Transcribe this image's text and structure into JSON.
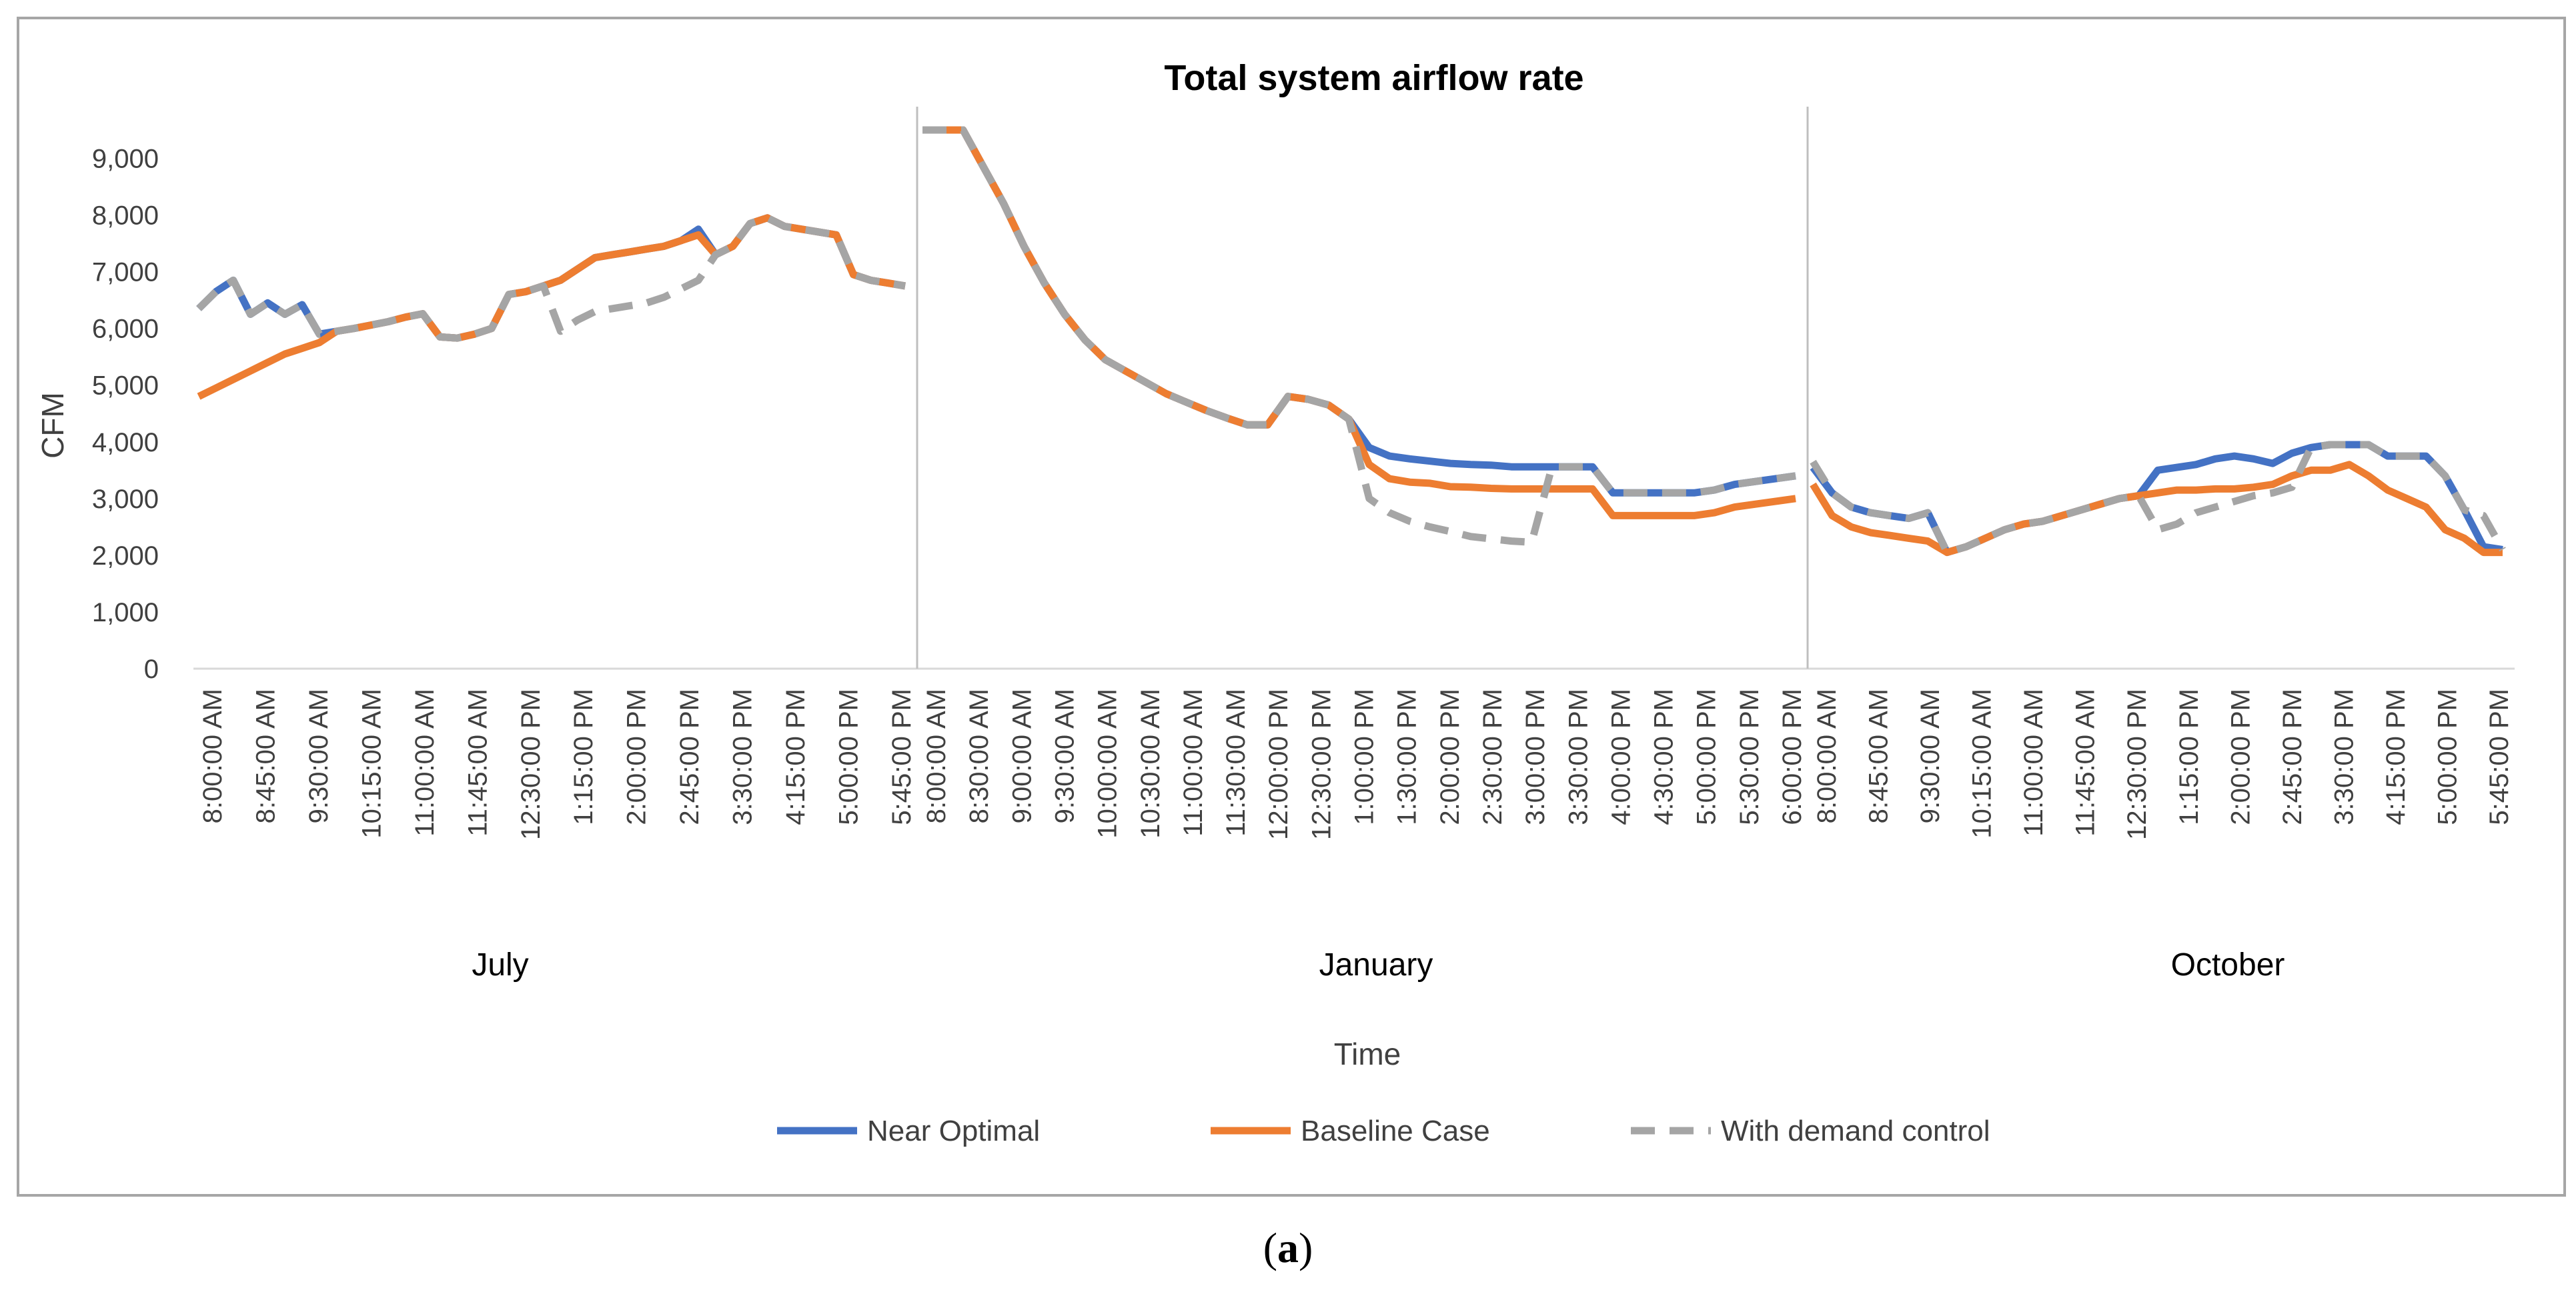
{
  "chart_data": {
    "type": "line",
    "title": "Total system airflow rate",
    "xlabel": "Time",
    "ylabel": "CFM",
    "ylim": [
      0,
      9500
    ],
    "yticks": [
      0,
      1000,
      2000,
      3000,
      4000,
      5000,
      6000,
      7000,
      8000,
      9000
    ],
    "ytick_labels": [
      "0",
      "1,000",
      "2,000",
      "3,000",
      "4,000",
      "5,000",
      "6,000",
      "7,000",
      "8,000",
      "9,000"
    ],
    "colors": {
      "Near Optimal": "#4472c4",
      "Baseline Case": "#ed7d31",
      "With demand control": "#a5a5a5"
    },
    "panels": [
      {
        "name": "July",
        "tick_labels": [
          "8:00:00 AM",
          "8:45:00 AM",
          "9:30:00 AM",
          "10:15:00 AM",
          "11:00:00 AM",
          "11:45:00 AM",
          "12:30:00 PM",
          "1:15:00 PM",
          "2:00:00 PM",
          "2:45:00 PM",
          "3:30:00 PM",
          "4:15:00 PM",
          "5:00:00 PM",
          "5:45:00 PM"
        ],
        "series": [
          {
            "name": "Near Optimal",
            "values": [
              6350,
              6650,
              6850,
              6250,
              6450,
              6250,
              6420,
              5900,
              5950,
              6000,
              6060,
              6120,
              6200,
              6260,
              5850,
              5830,
              5900,
              6000,
              6600,
              6650,
              6750,
              6850,
              7050,
              7250,
              7300,
              7350,
              7400,
              7450,
              7550,
              7750,
              7300,
              7450,
              7850,
              7950,
              7800,
              7750,
              7700,
              7650,
              6950,
              6850,
              6800,
              6750
            ]
          },
          {
            "name": "Baseline Case",
            "values": [
              4800,
              4950,
              5100,
              5250,
              5400,
              5550,
              5650,
              5750,
              5950,
              6000,
              6060,
              6120,
              6200,
              6260,
              5850,
              5830,
              5900,
              6000,
              6600,
              6650,
              6750,
              6850,
              7050,
              7250,
              7300,
              7350,
              7400,
              7450,
              7550,
              7650,
              7300,
              7450,
              7850,
              7950,
              7800,
              7750,
              7700,
              7650,
              6950,
              6850,
              6800,
              6750
            ]
          },
          {
            "name": "With demand control",
            "values": [
              6350,
              6650,
              6850,
              6250,
              6450,
              6250,
              6420,
              5900,
              5950,
              6000,
              6060,
              6120,
              6200,
              6260,
              5850,
              5830,
              5900,
              6000,
              6600,
              6650,
              6750,
              5950,
              6150,
              6300,
              6350,
              6400,
              6450,
              6550,
              6700,
              6850,
              7300,
              7450,
              7850,
              7950,
              7800,
              7750,
              7700,
              7650,
              6950,
              6850,
              6800,
              6750
            ]
          }
        ]
      },
      {
        "name": "January",
        "tick_labels": [
          "8:00:00 AM",
          "8:30:00 AM",
          "9:00:00 AM",
          "9:30:00 AM",
          "10:00:00 AM",
          "10:30:00 AM",
          "11:00:00 AM",
          "11:30:00 AM",
          "12:00:00 PM",
          "12:30:00 PM",
          "1:00:00 PM",
          "1:30:00 PM",
          "2:00:00 PM",
          "2:30:00 PM",
          "3:00:00 PM",
          "3:30:00 PM",
          "4:00:00 PM",
          "4:30:00 PM",
          "5:00:00 PM",
          "5:30:00 PM",
          "6:00:00 PM"
        ],
        "series": [
          {
            "name": "Near Optimal",
            "values": [
              9500,
              9500,
              9500,
              8850,
              8200,
              7450,
              6800,
              6250,
              5800,
              5450,
              5250,
              5050,
              4850,
              4700,
              4550,
              4420,
              4300,
              4300,
              4800,
              4750,
              4650,
              4400,
              3900,
              3750,
              3700,
              3660,
              3620,
              3600,
              3590,
              3560,
              3560,
              3560,
              3560,
              3560,
              3100,
              3100,
              3100,
              3100,
              3100,
              3150,
              3250,
              3300,
              3350,
              3400
            ]
          },
          {
            "name": "Baseline Case",
            "values": [
              9500,
              9500,
              9500,
              8850,
              8200,
              7450,
              6800,
              6250,
              5800,
              5450,
              5250,
              5050,
              4850,
              4700,
              4550,
              4420,
              4300,
              4300,
              4800,
              4750,
              4650,
              4400,
              3600,
              3350,
              3290,
              3270,
              3210,
              3200,
              3180,
              3170,
              3170,
              3170,
              3170,
              3170,
              2700,
              2700,
              2700,
              2700,
              2700,
              2750,
              2850,
              2900,
              2950,
              3000
            ]
          },
          {
            "name": "With demand control",
            "values": [
              9500,
              9500,
              9500,
              8850,
              8200,
              7450,
              6800,
              6250,
              5800,
              5450,
              5250,
              5050,
              4850,
              4700,
              4550,
              4420,
              4300,
              4300,
              4800,
              4750,
              4650,
              4400,
              3000,
              2750,
              2600,
              2500,
              2420,
              2330,
              2290,
              2250,
              2230,
              3560,
              3560,
              3560,
              3100,
              3100,
              3100,
              3100,
              3100,
              3150,
              3250,
              3300,
              3350,
              3400
            ]
          }
        ]
      },
      {
        "name": "October",
        "tick_labels": [
          "8:00:00 AM",
          "8:45:00 AM",
          "9:30:00 AM",
          "10:15:00 AM",
          "11:00:00 AM",
          "11:45:00 AM",
          "12:30:00 PM",
          "1:15:00 PM",
          "2:00:00 PM",
          "2:45:00 PM",
          "3:30:00 PM",
          "4:15:00 PM",
          "5:00:00 PM",
          "5:45:00 PM"
        ],
        "series": [
          {
            "name": "Near Optimal",
            "values": [
              3550,
              3100,
              2850,
              2750,
              2700,
              2650,
              2750,
              2050,
              2150,
              2300,
              2450,
              2550,
              2600,
              2700,
              2800,
              2900,
              3000,
              3050,
              3500,
              3550,
              3600,
              3700,
              3750,
              3700,
              3620,
              3800,
              3900,
              3950,
              3950,
              3950,
              3750,
              3750,
              3750,
              3400,
              2800,
              2150,
              2100
            ]
          },
          {
            "name": "Baseline Case",
            "values": [
              3250,
              2700,
              2500,
              2400,
              2350,
              2300,
              2250,
              2050,
              2150,
              2300,
              2450,
              2550,
              2600,
              2700,
              2800,
              2900,
              3000,
              3050,
              3100,
              3150,
              3150,
              3170,
              3170,
              3200,
              3250,
              3400,
              3500,
              3500,
              3600,
              3400,
              3150,
              3000,
              2850,
              2450,
              2300,
              2050,
              2050
            ]
          },
          {
            "name": "With demand control",
            "values": [
              3650,
              3100,
              2850,
              2750,
              2700,
              2650,
              2750,
              2050,
              2150,
              2300,
              2450,
              2550,
              2600,
              2700,
              2800,
              2900,
              3000,
              3050,
              2450,
              2550,
              2750,
              2850,
              2950,
              3050,
              3100,
              3200,
              3900,
              3950,
              3950,
              3950,
              3750,
              3750,
              3750,
              3400,
              2800,
              2700,
              2100
            ]
          }
        ]
      }
    ],
    "legend": {
      "position": "bottom",
      "items": [
        "Near Optimal",
        "Baseline Case",
        "With demand control"
      ]
    }
  },
  "caption": {
    "open": "(",
    "label": "a",
    "close": ")"
  }
}
